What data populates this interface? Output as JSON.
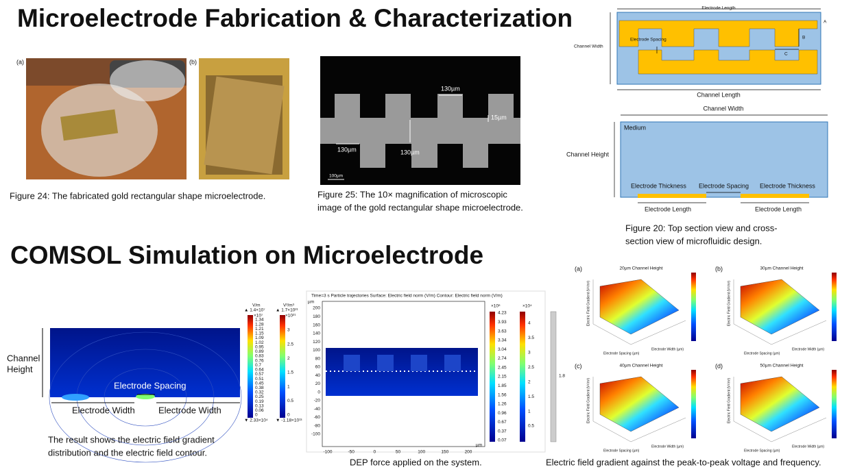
{
  "header": {
    "title": "Microelectrode Fabrication & Characterization"
  },
  "fabrication": {
    "photo_labels": [
      "(a)",
      "(b)"
    ],
    "figure24_caption": "Figure 24: The fabricated gold rectangular shape microelectrode.",
    "microscope": {
      "labels": [
        "130µm",
        "15µm",
        "130µm",
        "130µm",
        "100µm"
      ]
    },
    "figure25_caption": [
      "Figure 25: The 10× magnification of microscopic",
      "image of the gold rectangular shape microelectrode."
    ],
    "top_view": {
      "electrode_length": "Electrode Length",
      "channel_width": "Channel Width",
      "electrode_spacing": "Electrode Spacing",
      "a": "A",
      "b": "B",
      "c": "C",
      "channel_length": "Channel Length"
    },
    "cross_section": {
      "channel_width": "Channel Width",
      "medium": "Medium",
      "channel_height": "Channel Height",
      "electrode_thickness_left": "Electrode Thickness",
      "electrode_spacing": "Electrode Spacing",
      "electrode_thickness_right": "Electrode Thickness",
      "electrode_length_left": "Electrode Length",
      "electrode_length_right": "Electrode Length"
    },
    "figure20_caption": [
      "Figure 20: Top section view and cross-",
      "section view of microfluidic design."
    ]
  },
  "simulation": {
    "title": "COMSOL Simulation on Microelectrode",
    "field_plot": {
      "channel_height": [
        "Channel",
        "Height"
      ],
      "electrode_spacing": "Electrode Spacing",
      "electrode_width_left": "Electrode Width",
      "electrode_width_right": "Electrode Width",
      "colorbar1": {
        "unit": "V/m",
        "max": "▲ 1.4×10⁷",
        "scale": "×10⁷",
        "min": "▼ 2.33×10⁴",
        "ticks": [
          "1.34",
          "1.28",
          "1.21",
          "1.15",
          "1.09",
          "1.02",
          "0.95",
          "0.89",
          "0.83",
          "0.76",
          "0.7",
          "0.64",
          "0.57",
          "0.51",
          "0.45",
          "0.38",
          "0.32",
          "0.25",
          "0.19",
          "0.13",
          "0.06",
          "0"
        ]
      },
      "colorbar2": {
        "unit": "V²/m³",
        "max": "▲ 1.7×10²¹",
        "scale": "×10²¹",
        "min": "▼ -1.18×10¹³",
        "ticks": [
          "3",
          "2.5",
          "2",
          "1.5",
          "1",
          "0.5",
          "0"
        ]
      }
    },
    "field_caption": [
      "The result shows the electric field gradient",
      "distribution and the electric field contour."
    ],
    "dep_plot": {
      "header": "Time=3 s    Particle trajectories   Surface: Electric field norm (V/m)   Contour: Electric field norm (V/m)",
      "y_unit": "µm",
      "x_unit": "µm",
      "yticks": [
        "200",
        "180",
        "160",
        "140",
        "120",
        "100",
        "80",
        "60",
        "40",
        "20",
        "0",
        "-20",
        "-40",
        "-60",
        "-80",
        "-100"
      ],
      "xticks": [
        "-100",
        "-50",
        "0",
        "50",
        "100",
        "150",
        "200"
      ],
      "colorbar1": {
        "scale": "×10⁶",
        "ticks": [
          "4.23",
          "3.93",
          "3.63",
          "3.34",
          "3.04",
          "2.74",
          "2.45",
          "2.15",
          "1.85",
          "1.56",
          "1.26",
          "0.96",
          "0.67",
          "0.37",
          "0.07"
        ]
      },
      "colorbar2": {
        "scale": "×10⁴",
        "ticks": [
          "4",
          "3.5",
          "3",
          "2.5",
          "2",
          "1.5",
          "1",
          "0.5"
        ]
      },
      "colorbar3": {
        "tick": "1.8"
      }
    },
    "dep_caption": "DEP force applied on the system.",
    "gradient_plots": [
      {
        "label": "(a)",
        "title": "20µm Channel Height"
      },
      {
        "label": "(b)",
        "title": "30µm Channel Height"
      },
      {
        "label": "(c)",
        "title": "40µm Channel Height"
      },
      {
        "label": "(d)",
        "title": "50µm Channel Height"
      }
    ],
    "gradient_axes": {
      "x": "Electrode Spacing (µm)",
      "y": "Electrode Width (µm)",
      "z": "Electric Field Gradient (V²/m³)"
    },
    "gradient_caption": "Electric field gradient against the peak-to-peak voltage and frequency."
  }
}
